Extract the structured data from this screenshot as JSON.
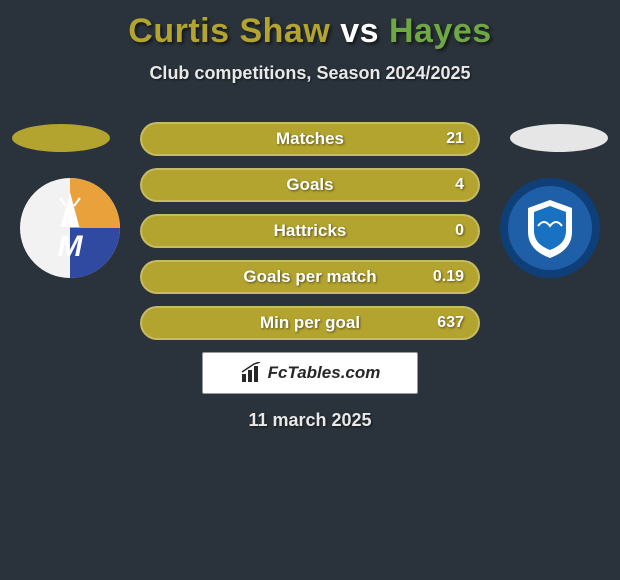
{
  "title": {
    "player1": "Curtis Shaw",
    "vs": " vs ",
    "player2": "Hayes",
    "player1_color": "#b3a32f",
    "player2_color": "#6fa843"
  },
  "subtitle": "Club competitions, Season 2024/2025",
  "ellipse": {
    "left_color": "#b3a32f",
    "right_color": "#e6e6e6"
  },
  "bars": {
    "fill_color": "#b3a32f",
    "border_color": "rgba(255,255,255,0.25)",
    "label_fontsize": 17,
    "value_fontsize": 16,
    "items": [
      {
        "label": "Matches",
        "value": "21"
      },
      {
        "label": "Goals",
        "value": "4"
      },
      {
        "label": "Hattricks",
        "value": "0"
      },
      {
        "label": "Goals per match",
        "value": "0.19"
      },
      {
        "label": "Min per goal",
        "value": "637"
      }
    ]
  },
  "badge_left": {
    "bg": "#f2f2f2",
    "stripe1": "#e9a23b",
    "stripe2": "#2f4aa0",
    "letter": "M",
    "letter_color": "#ffffff"
  },
  "badge_right": {
    "bg": "#1f5fa8",
    "ring": "#0f3f78",
    "shield": "#ffffff",
    "inner": "#1971c2"
  },
  "logo_text": "FcTables.com",
  "date": "11 march 2025",
  "background_color": "#2a333b"
}
